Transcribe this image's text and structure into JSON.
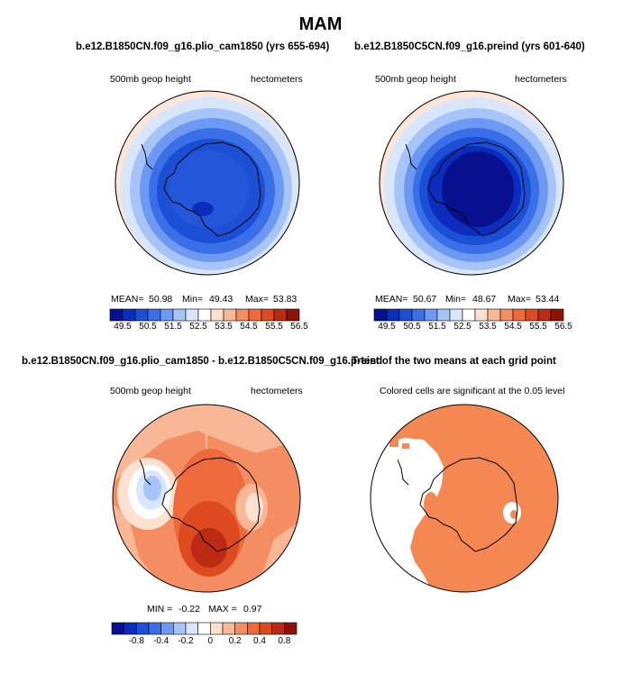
{
  "page_title": "MAM",
  "panels": {
    "top_left": {
      "title": "b.e12.B1850CN.f09_g16.plio_cam1850 (yrs 655-694)",
      "left_label": "500mb geop height",
      "right_label": "hectometers",
      "mean_label": "MEAN=",
      "mean_value": "50.98",
      "min_label": "Min=",
      "min_value": "49.43",
      "max_label": "Max=",
      "max_value": "53.83"
    },
    "top_right": {
      "title": "b.e12.B1850C5CN.f09_g16.preind (yrs 601-640)",
      "left_label": "500mb geop height",
      "right_label": "hectometers",
      "mean_label": "MEAN=",
      "mean_value": "50.67",
      "min_label": "Min=",
      "min_value": "48.67",
      "max_label": "Max=",
      "max_value": "53.44"
    },
    "bottom_left": {
      "title": "b.e12.B1850CN.f09_g16.plio_cam1850 - b.e12.B1850C5CN.f09_g16.preind",
      "left_label": "500mb geop height",
      "right_label": "hectometers",
      "min_label": "MIN =",
      "min_value": "-0.22",
      "max_label": "MAX =",
      "max_value": "0.97"
    },
    "bottom_right": {
      "title": "T-test of the two means at each grid point",
      "subtitle": "Colored cells are significant at the 0.05 level"
    }
  },
  "colorbar_abs": {
    "ticks": [
      "49.5",
      "50.5",
      "51.5",
      "52.5",
      "53.5",
      "54.5",
      "55.5",
      "56.5"
    ],
    "colors": [
      "#08108f",
      "#0a2dbd",
      "#1a4fd6",
      "#3a6fe8",
      "#6e99f2",
      "#a6c4f7",
      "#d8e5fb",
      "#ffffff",
      "#fde0cf",
      "#f9b795",
      "#f48d62",
      "#ee6a3a",
      "#de4a1f",
      "#bb2a12",
      "#8c1208"
    ]
  },
  "colorbar_diff": {
    "ticks": [
      "-0.8",
      "-0.4",
      "-0.2",
      "0",
      "0.2",
      "0.4",
      "0.8"
    ],
    "colors": [
      "#08108f",
      "#0a2dbd",
      "#1a4fd6",
      "#3a6fe8",
      "#6e99f2",
      "#a6c4f7",
      "#d8e5fb",
      "#ffffff",
      "#fde0cf",
      "#f9b795",
      "#f48d62",
      "#ee6a3a",
      "#de4a1f",
      "#bb2a12",
      "#8c1208"
    ]
  }
}
